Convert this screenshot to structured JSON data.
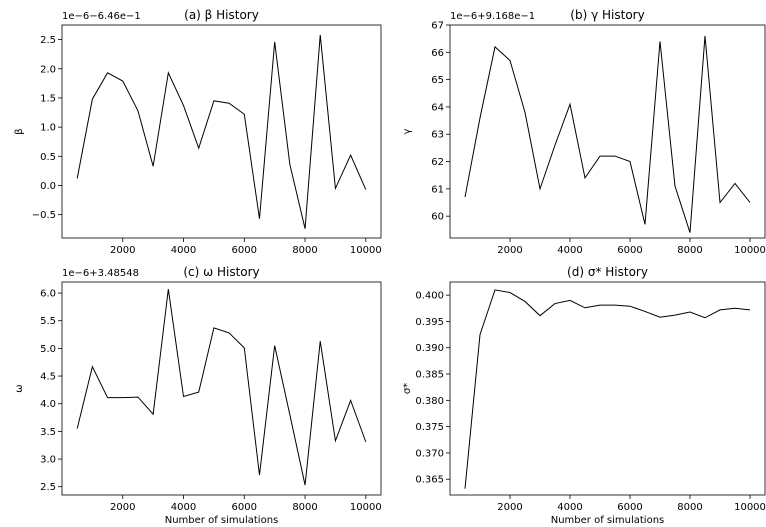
{
  "chart_data": [
    {
      "type": "line",
      "title": "(a) β History",
      "xlabel": "",
      "ylabel": "β",
      "offset_text": "1e−6−6.46e−1",
      "xlim": [
        0,
        10500
      ],
      "ylim": [
        -0.9,
        2.75
      ],
      "xticks": [
        2000,
        4000,
        6000,
        8000,
        10000
      ],
      "yticks": [
        -0.5,
        0.0,
        0.5,
        1.0,
        1.5,
        2.0,
        2.5
      ],
      "xtick_labels": [
        "2000",
        "4000",
        "6000",
        "8000",
        "10000"
      ],
      "ytick_labels": [
        "−0.5",
        "0.0",
        "0.5",
        "1.0",
        "1.5",
        "2.0",
        "2.5"
      ],
      "x": [
        500,
        1000,
        1500,
        2000,
        2500,
        3000,
        3500,
        4000,
        4500,
        5000,
        5500,
        6000,
        6500,
        7000,
        7500,
        8000,
        8500,
        9000,
        9500,
        10000
      ],
      "y": [
        0.12,
        1.48,
        1.93,
        1.79,
        1.28,
        0.33,
        1.93,
        1.37,
        0.64,
        1.45,
        1.41,
        1.22,
        -0.57,
        2.46,
        0.36,
        -0.74,
        2.58,
        -0.05,
        0.52,
        -0.07
      ]
    },
    {
      "type": "line",
      "title": "(b) γ History",
      "xlabel": "",
      "ylabel": "γ",
      "offset_text": "1e−6+9.168e−1",
      "xlim": [
        0,
        10500
      ],
      "ylim": [
        59.2,
        67.0
      ],
      "xticks": [
        2000,
        4000,
        6000,
        8000,
        10000
      ],
      "yticks": [
        60,
        61,
        62,
        63,
        64,
        65,
        66,
        67
      ],
      "xtick_labels": [
        "2000",
        "4000",
        "6000",
        "8000",
        "10000"
      ],
      "ytick_labels": [
        "60",
        "61",
        "62",
        "63",
        "64",
        "65",
        "66",
        "67"
      ],
      "x": [
        500,
        1000,
        1500,
        2000,
        2500,
        3000,
        3500,
        4000,
        4500,
        5000,
        5500,
        6000,
        6500,
        7000,
        7500,
        8000,
        8500,
        9000,
        9500,
        10000
      ],
      "y": [
        60.7,
        63.6,
        66.2,
        65.7,
        63.8,
        61.0,
        62.6,
        64.1,
        61.4,
        62.2,
        62.2,
        62.0,
        59.7,
        66.4,
        61.1,
        59.4,
        66.6,
        60.5,
        61.2,
        60.5
      ]
    },
    {
      "type": "line",
      "title": "(c) ω History",
      "xlabel": "Number of simulations",
      "ylabel": "ω",
      "offset_text": "1e−6+3.48548",
      "xlim": [
        0,
        10500
      ],
      "ylim": [
        2.35,
        6.2
      ],
      "xticks": [
        2000,
        4000,
        6000,
        8000,
        10000
      ],
      "yticks": [
        2.5,
        3.0,
        3.5,
        4.0,
        4.5,
        5.0,
        5.5,
        6.0
      ],
      "xtick_labels": [
        "2000",
        "4000",
        "6000",
        "8000",
        "10000"
      ],
      "ytick_labels": [
        "2.5",
        "3.0",
        "3.5",
        "4.0",
        "4.5",
        "5.0",
        "5.5",
        "6.0"
      ],
      "x": [
        500,
        1000,
        1500,
        2000,
        2500,
        3000,
        3500,
        4000,
        4500,
        5000,
        5500,
        6000,
        6500,
        7000,
        7500,
        8000,
        8500,
        9000,
        9500,
        10000
      ],
      "y": [
        3.55,
        4.67,
        4.11,
        4.11,
        4.12,
        3.81,
        6.07,
        4.13,
        4.21,
        5.37,
        5.28,
        5.01,
        2.71,
        5.05,
        3.8,
        2.53,
        5.13,
        3.33,
        4.06,
        3.31
      ]
    },
    {
      "type": "line",
      "title": "(d) σ* History",
      "xlabel": "Number of simulations",
      "ylabel": "σ*",
      "offset_text": "",
      "xlim": [
        0,
        10500
      ],
      "ylim": [
        0.362,
        0.4025
      ],
      "xticks": [
        2000,
        4000,
        6000,
        8000,
        10000
      ],
      "yticks": [
        0.365,
        0.37,
        0.375,
        0.38,
        0.385,
        0.39,
        0.395,
        0.4
      ],
      "xtick_labels": [
        "2000",
        "4000",
        "6000",
        "8000",
        "10000"
      ],
      "ytick_labels": [
        "0.365",
        "0.370",
        "0.375",
        "0.380",
        "0.385",
        "0.390",
        "0.395",
        "0.400"
      ],
      "x": [
        500,
        1000,
        1500,
        2000,
        2500,
        3000,
        3500,
        4000,
        4500,
        5000,
        5500,
        6000,
        6500,
        7000,
        7500,
        8000,
        8500,
        9000,
        9500,
        10000
      ],
      "y": [
        0.3632,
        0.3925,
        0.401,
        0.4005,
        0.3988,
        0.3961,
        0.3984,
        0.399,
        0.3976,
        0.3981,
        0.3981,
        0.3979,
        0.3969,
        0.3958,
        0.3962,
        0.3968,
        0.3957,
        0.3972,
        0.3975,
        0.3972
      ]
    }
  ]
}
